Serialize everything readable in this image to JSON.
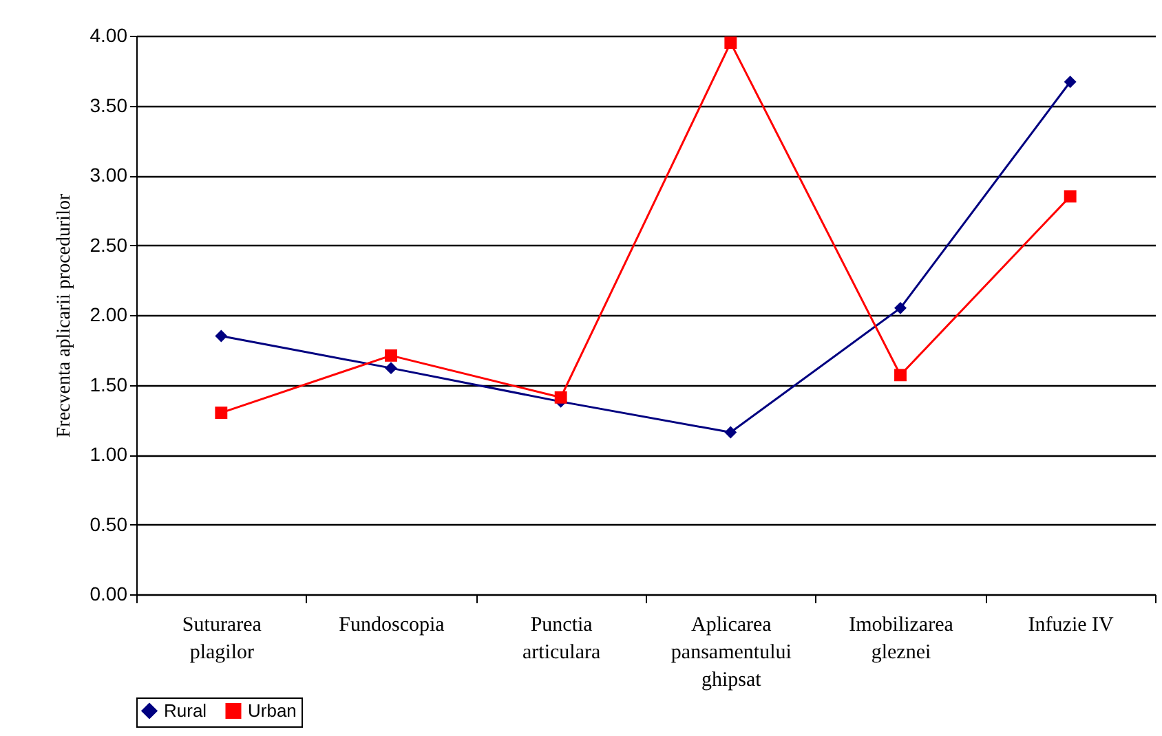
{
  "chart_data": {
    "type": "line",
    "ylabel": "Frecventa aplicarii procedurilor",
    "categories": [
      "Suturarea plagilor",
      "Fundoscopia",
      "Punctia articulara",
      "Aplicarea pansamentului ghipsat",
      "Imobilizarea gleznei",
      "Infuzie IV"
    ],
    "series": [
      {
        "name": "Rural",
        "color": "#000080",
        "marker": "diamond",
        "values": [
          1.85,
          1.62,
          1.38,
          1.16,
          2.05,
          3.67
        ]
      },
      {
        "name": "Urban",
        "color": "#ff0000",
        "marker": "square",
        "values": [
          1.3,
          1.71,
          1.41,
          3.95,
          1.57,
          2.85
        ]
      }
    ],
    "ylim": [
      0,
      4
    ],
    "yticks": [
      {
        "value": 0,
        "label": "0.00"
      },
      {
        "value": 0.5,
        "label": "0.50"
      },
      {
        "value": 1,
        "label": "1.00"
      },
      {
        "value": 1.5,
        "label": "1.50"
      },
      {
        "value": 2,
        "label": "2.00"
      },
      {
        "value": 2.5,
        "label": "2.50"
      },
      {
        "value": 3,
        "label": "3.00"
      },
      {
        "value": 3.5,
        "label": "3.50"
      },
      {
        "value": 4,
        "label": "4.00"
      }
    ],
    "grid": "y",
    "legend": "bottom",
    "line_style": "solid"
  }
}
